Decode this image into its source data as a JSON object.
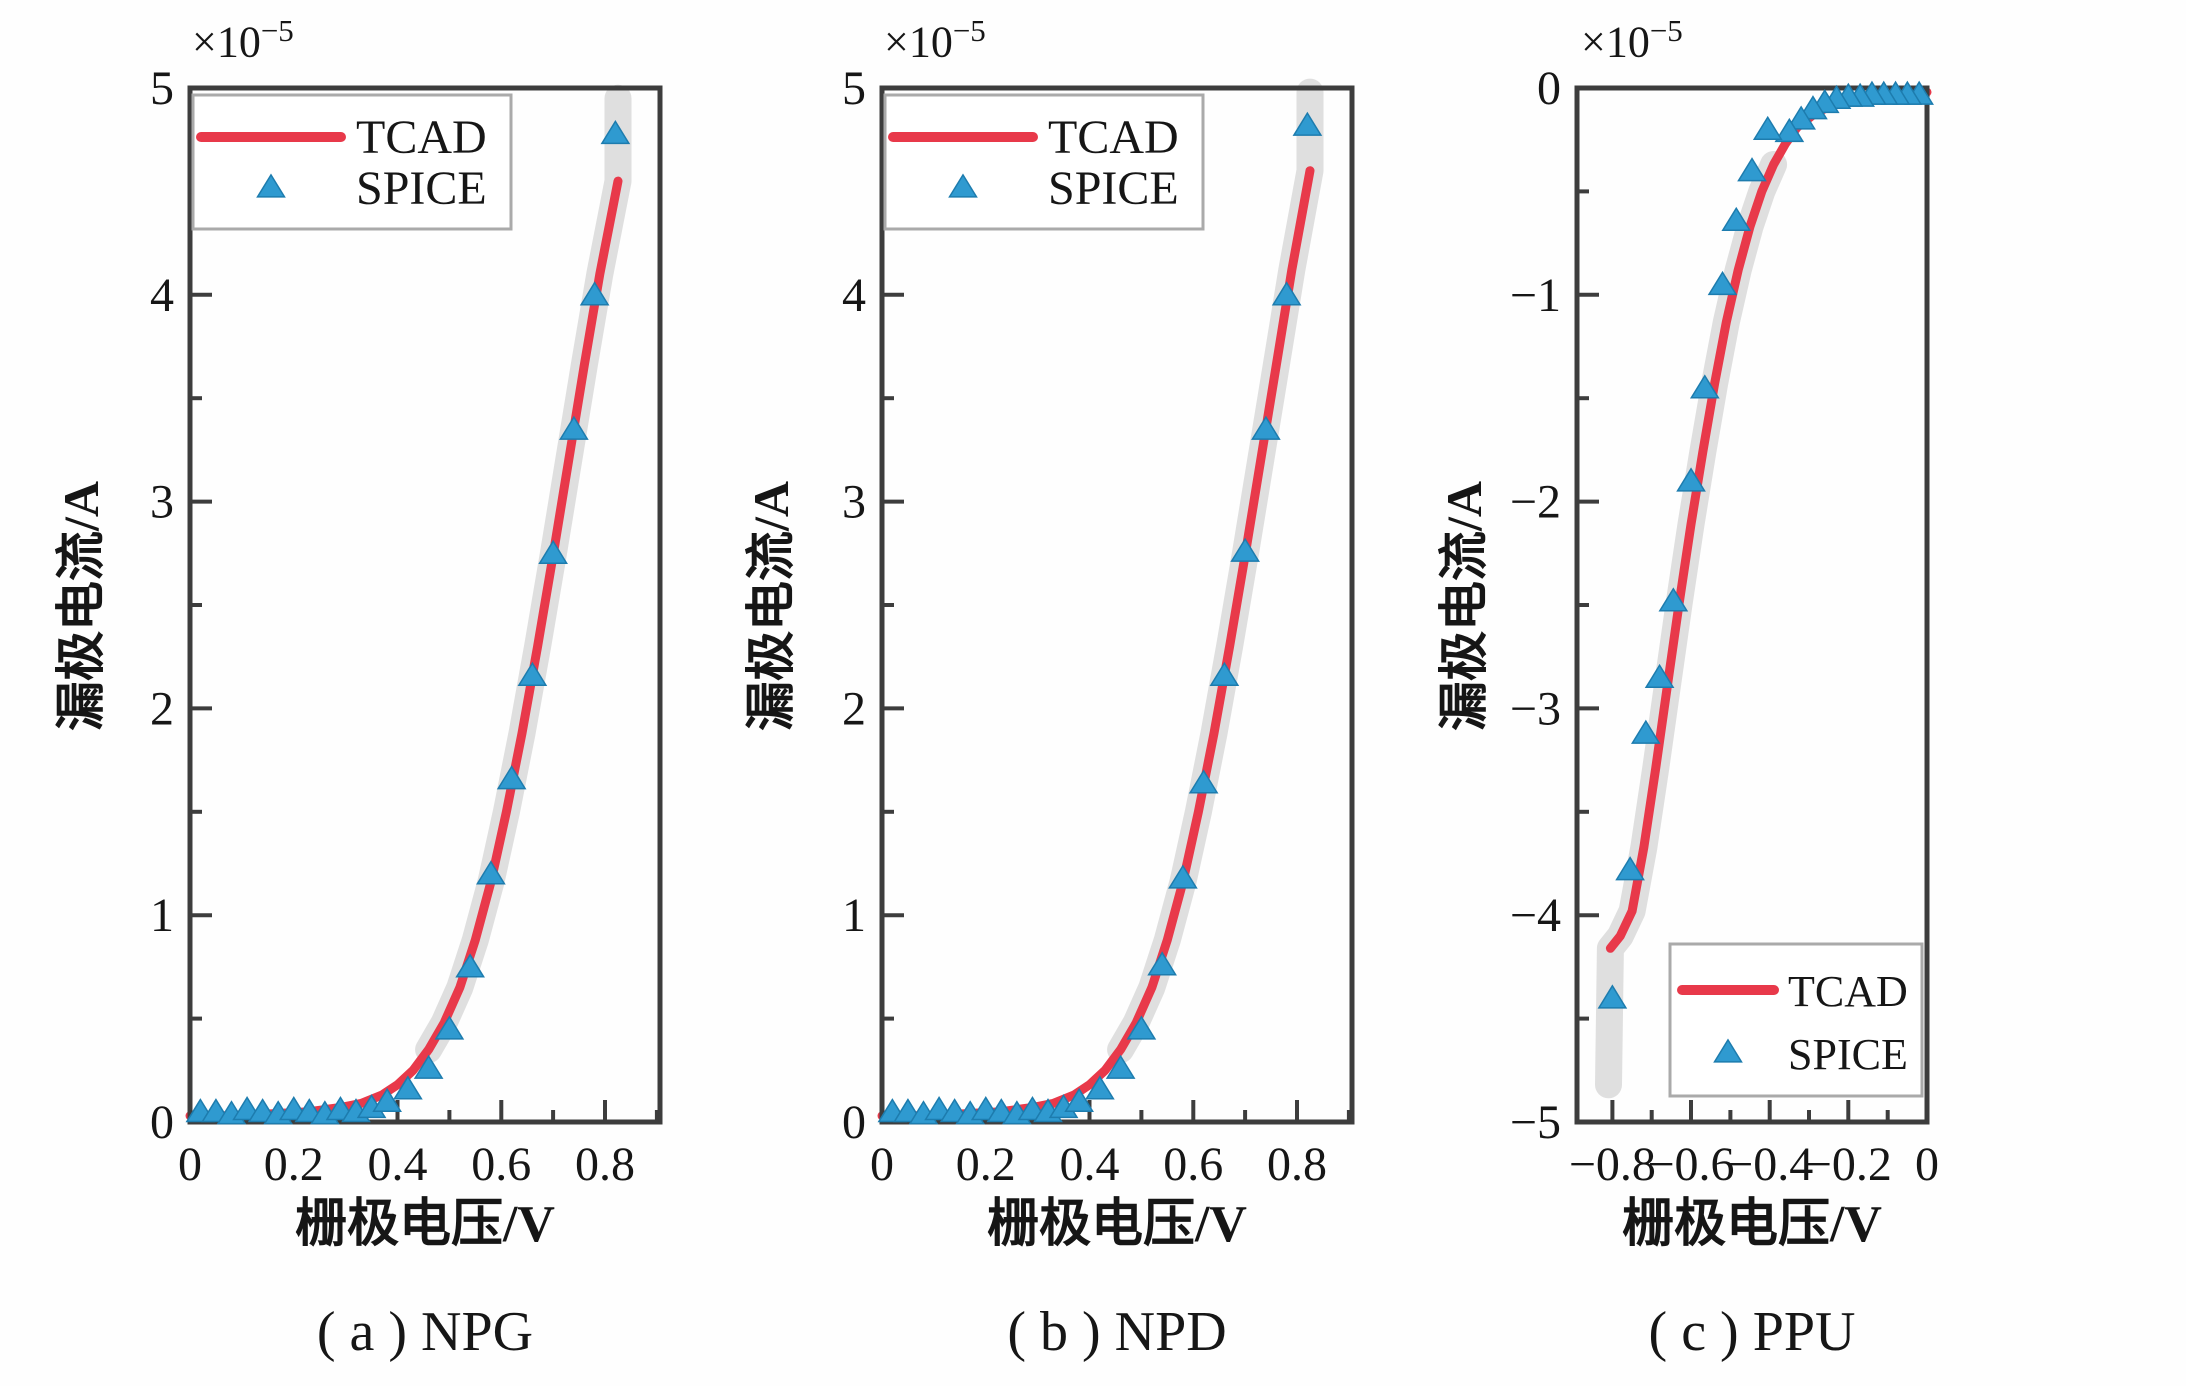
{
  "figure": {
    "background": "#fefefe",
    "colors": {
      "tcad_red": "#e8394a",
      "spice_blue": "#2f9ad0",
      "spice_edge": "#1d7cae",
      "band_gray": "#dcdcdc",
      "axis": "#3d3d3d",
      "legend_border": "#aaaaaa",
      "text": "#161616"
    }
  },
  "chart_data": [
    {
      "id": "a",
      "type": "line+scatter",
      "device": "NPG",
      "caption": "( a )  NPG",
      "xlabel": "栅极电压/V",
      "ylabel": "漏极电流/A",
      "scale_label": {
        "mult": "×10",
        "exp": "−5"
      },
      "unit": "A (axis values ×10⁻⁵)",
      "xlim": [
        0,
        0.906
      ],
      "ylim": [
        0,
        5
      ],
      "xticks": {
        "values": [
          0,
          0.2,
          0.4,
          0.6,
          0.8
        ],
        "labels": [
          "0",
          "0.2",
          "0.4",
          "0.6",
          "0.8"
        ]
      },
      "xminor": [
        0.1,
        0.3,
        0.5,
        0.7,
        0.9
      ],
      "yticks": {
        "values": [
          0,
          1,
          2,
          3,
          4,
          5
        ],
        "labels": [
          "0",
          "1",
          "2",
          "3",
          "4",
          "5"
        ]
      },
      "yminor": [
        0.5,
        1.5,
        2.5,
        3.5,
        4.5
      ],
      "legend": {
        "position": "top-left",
        "items": [
          "TCAD",
          "SPICE"
        ]
      },
      "band": {
        "color": "band_gray",
        "threshold": 0.3,
        "extend": [
          0.825,
          4.95
        ]
      },
      "series": [
        {
          "name": "TCAD",
          "kind": "line",
          "color": "tcad_red",
          "points": [
            [
              0,
              0.03
            ],
            [
              0.08,
              0.03
            ],
            [
              0.16,
              0.04
            ],
            [
              0.23,
              0.05
            ],
            [
              0.29,
              0.07
            ],
            [
              0.33,
              0.09
            ],
            [
              0.37,
              0.13
            ],
            [
              0.4,
              0.18
            ],
            [
              0.43,
              0.25
            ],
            [
              0.46,
              0.35
            ],
            [
              0.49,
              0.48
            ],
            [
              0.52,
              0.65
            ],
            [
              0.55,
              0.88
            ],
            [
              0.58,
              1.16
            ],
            [
              0.61,
              1.5
            ],
            [
              0.64,
              1.88
            ],
            [
              0.67,
              2.3
            ],
            [
              0.7,
              2.74
            ],
            [
              0.73,
              3.2
            ],
            [
              0.76,
              3.66
            ],
            [
              0.79,
              4.1
            ],
            [
              0.825,
              4.55
            ]
          ]
        },
        {
          "name": "SPICE",
          "kind": "scatter",
          "color": "spice_blue",
          "points": [
            [
              0.02,
              0.05
            ],
            [
              0.05,
              0.05
            ],
            [
              0.08,
              0.04
            ],
            [
              0.11,
              0.06
            ],
            [
              0.14,
              0.05
            ],
            [
              0.17,
              0.04
            ],
            [
              0.2,
              0.06
            ],
            [
              0.23,
              0.05
            ],
            [
              0.26,
              0.04
            ],
            [
              0.29,
              0.06
            ],
            [
              0.32,
              0.05
            ],
            [
              0.35,
              0.07
            ],
            [
              0.38,
              0.1
            ],
            [
              0.42,
              0.16
            ],
            [
              0.46,
              0.26
            ],
            [
              0.5,
              0.45
            ],
            [
              0.54,
              0.75
            ],
            [
              0.58,
              1.2
            ],
            [
              0.62,
              1.66
            ],
            [
              0.66,
              2.16
            ],
            [
              0.7,
              2.75
            ],
            [
              0.74,
              3.35
            ],
            [
              0.78,
              4.0
            ],
            [
              0.82,
              4.78
            ]
          ]
        }
      ]
    },
    {
      "id": "b",
      "type": "line+scatter",
      "device": "NPD",
      "caption": "( b )  NPD",
      "xlabel": "栅极电压/V",
      "ylabel": "漏极电流/A",
      "scale_label": {
        "mult": "×10",
        "exp": "−5"
      },
      "unit": "A (axis values ×10⁻⁵)",
      "xlim": [
        0,
        0.906
      ],
      "ylim": [
        0,
        5
      ],
      "xticks": {
        "values": [
          0,
          0.2,
          0.4,
          0.6,
          0.8
        ],
        "labels": [
          "0",
          "0.2",
          "0.4",
          "0.6",
          "0.8"
        ]
      },
      "xminor": [
        0.1,
        0.3,
        0.5,
        0.7,
        0.9
      ],
      "yticks": {
        "values": [
          0,
          1,
          2,
          3,
          4,
          5
        ],
        "labels": [
          "0",
          "1",
          "2",
          "3",
          "4",
          "5"
        ]
      },
      "yminor": [
        0.5,
        1.5,
        2.5,
        3.5,
        4.5
      ],
      "legend": {
        "position": "top-left",
        "items": [
          "TCAD",
          "SPICE"
        ]
      },
      "band": {
        "color": "band_gray",
        "threshold": 0.3,
        "extend": [
          0.825,
          4.98
        ]
      },
      "series": [
        {
          "name": "TCAD",
          "kind": "line",
          "color": "tcad_red",
          "points": [
            [
              0,
              0.03
            ],
            [
              0.08,
              0.03
            ],
            [
              0.16,
              0.04
            ],
            [
              0.23,
              0.05
            ],
            [
              0.29,
              0.07
            ],
            [
              0.33,
              0.09
            ],
            [
              0.37,
              0.13
            ],
            [
              0.4,
              0.18
            ],
            [
              0.43,
              0.25
            ],
            [
              0.46,
              0.35
            ],
            [
              0.49,
              0.48
            ],
            [
              0.52,
              0.65
            ],
            [
              0.55,
              0.88
            ],
            [
              0.58,
              1.16
            ],
            [
              0.61,
              1.5
            ],
            [
              0.64,
              1.88
            ],
            [
              0.67,
              2.3
            ],
            [
              0.7,
              2.74
            ],
            [
              0.73,
              3.2
            ],
            [
              0.76,
              3.66
            ],
            [
              0.79,
              4.12
            ],
            [
              0.825,
              4.6
            ]
          ]
        },
        {
          "name": "SPICE",
          "kind": "scatter",
          "color": "spice_blue",
          "points": [
            [
              0.02,
              0.05
            ],
            [
              0.05,
              0.05
            ],
            [
              0.08,
              0.04
            ],
            [
              0.11,
              0.06
            ],
            [
              0.14,
              0.05
            ],
            [
              0.17,
              0.04
            ],
            [
              0.2,
              0.06
            ],
            [
              0.23,
              0.05
            ],
            [
              0.26,
              0.04
            ],
            [
              0.29,
              0.06
            ],
            [
              0.32,
              0.05
            ],
            [
              0.35,
              0.07
            ],
            [
              0.38,
              0.1
            ],
            [
              0.42,
              0.16
            ],
            [
              0.46,
              0.26
            ],
            [
              0.5,
              0.45
            ],
            [
              0.54,
              0.76
            ],
            [
              0.58,
              1.18
            ],
            [
              0.62,
              1.64
            ],
            [
              0.66,
              2.16
            ],
            [
              0.7,
              2.76
            ],
            [
              0.74,
              3.35
            ],
            [
              0.78,
              4.0
            ],
            [
              0.82,
              4.82
            ]
          ]
        }
      ]
    },
    {
      "id": "c",
      "type": "line+scatter",
      "device": "PPU",
      "caption": "( c )  PPU",
      "xlabel": "栅极电压/V",
      "ylabel": "漏极电流/A",
      "scale_label": {
        "mult": "×10",
        "exp": "−5"
      },
      "unit": "A (axis values ×10⁻⁵)",
      "xlim": [
        -0.89,
        0
      ],
      "ylim": [
        -5,
        0
      ],
      "xticks": {
        "values": [
          -0.8,
          -0.6,
          -0.4,
          -0.2,
          0
        ],
        "labels": [
          "−0.8",
          "−0.6",
          "−0.4",
          "−0.2",
          "0"
        ]
      },
      "xminor": [
        -0.7,
        -0.5,
        -0.3,
        -0.1
      ],
      "yticks": {
        "values": [
          0,
          -1,
          -2,
          -3,
          -4,
          -5
        ],
        "labels": [
          "0",
          "−1",
          "−2",
          "−3",
          "−4",
          "−5"
        ]
      },
      "yminor": [
        -0.5,
        -1.5,
        -2.5,
        -3.5,
        -4.5
      ],
      "legend": {
        "position": "bottom-right",
        "items": [
          "TCAD",
          "SPICE"
        ]
      },
      "band": {
        "color": "band_gray",
        "threshold": 0.3,
        "extend": [
          -0.81,
          -4.82
        ]
      },
      "series": [
        {
          "name": "TCAD",
          "kind": "line",
          "color": "tcad_red",
          "points": [
            [
              0,
              -0.02
            ],
            [
              -0.1,
              -0.03
            ],
            [
              -0.18,
              -0.05
            ],
            [
              -0.24,
              -0.08
            ],
            [
              -0.29,
              -0.13
            ],
            [
              -0.33,
              -0.19
            ],
            [
              -0.36,
              -0.27
            ],
            [
              -0.39,
              -0.37
            ],
            [
              -0.42,
              -0.5
            ],
            [
              -0.45,
              -0.67
            ],
            [
              -0.48,
              -0.88
            ],
            [
              -0.51,
              -1.13
            ],
            [
              -0.54,
              -1.43
            ],
            [
              -0.57,
              -1.76
            ],
            [
              -0.6,
              -2.11
            ],
            [
              -0.63,
              -2.49
            ],
            [
              -0.66,
              -2.89
            ],
            [
              -0.69,
              -3.29
            ],
            [
              -0.72,
              -3.67
            ],
            [
              -0.75,
              -3.98
            ],
            [
              -0.78,
              -4.1
            ],
            [
              -0.805,
              -4.16
            ]
          ]
        },
        {
          "name": "SPICE",
          "kind": "scatter",
          "color": "spice_blue",
          "points": [
            [
              -0.02,
              -0.03
            ],
            [
              -0.05,
              -0.03
            ],
            [
              -0.08,
              -0.03
            ],
            [
              -0.11,
              -0.03
            ],
            [
              -0.14,
              -0.03
            ],
            [
              -0.17,
              -0.04
            ],
            [
              -0.2,
              -0.04
            ],
            [
              -0.23,
              -0.05
            ],
            [
              -0.26,
              -0.07
            ],
            [
              -0.29,
              -0.1
            ],
            [
              -0.32,
              -0.15
            ],
            [
              -0.35,
              -0.21
            ],
            [
              -0.405,
              -0.2
            ],
            [
              -0.445,
              -0.4
            ],
            [
              -0.485,
              -0.64
            ],
            [
              -0.52,
              -0.95
            ],
            [
              -0.565,
              -1.45
            ],
            [
              -0.6,
              -1.9
            ],
            [
              -0.645,
              -2.48
            ],
            [
              -0.68,
              -2.85
            ],
            [
              -0.715,
              -3.12
            ],
            [
              -0.755,
              -3.78
            ],
            [
              -0.8,
              -4.4
            ]
          ]
        }
      ]
    }
  ]
}
